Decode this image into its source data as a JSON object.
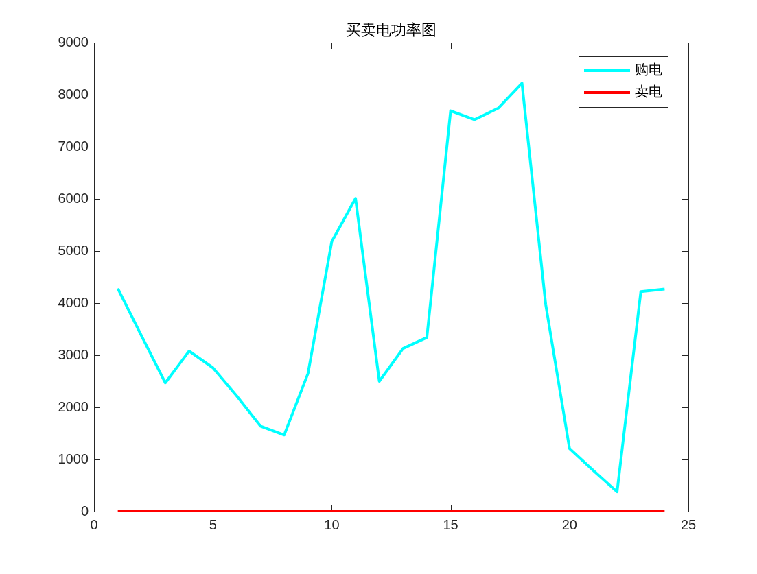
{
  "chart_data": {
    "type": "line",
    "title": "买卖电功率图",
    "x": [
      1,
      2,
      3,
      4,
      5,
      6,
      7,
      8,
      9,
      10,
      11,
      12,
      13,
      14,
      15,
      16,
      17,
      18,
      19,
      20,
      21,
      22,
      23,
      24
    ],
    "series": [
      {
        "name": "购电",
        "color": "#00ffff",
        "values": [
          4280,
          3370,
          2470,
          3080,
          2760,
          2220,
          1640,
          1470,
          2650,
          5180,
          6010,
          2500,
          3130,
          3340,
          7690,
          7520,
          7740,
          8220,
          3970,
          1210,
          790,
          380,
          4220,
          4270
        ]
      },
      {
        "name": "卖电",
        "color": "#ff0000",
        "values": [
          0,
          0,
          0,
          0,
          0,
          0,
          0,
          0,
          0,
          0,
          0,
          0,
          0,
          0,
          0,
          0,
          0,
          0,
          0,
          0,
          0,
          0,
          0,
          0
        ]
      }
    ],
    "xlim": [
      0,
      25
    ],
    "xticks": [
      0,
      5,
      10,
      15,
      20,
      25
    ],
    "ylim": [
      0,
      9000
    ],
    "yticks": [
      0,
      1000,
      2000,
      3000,
      4000,
      5000,
      6000,
      7000,
      8000,
      9000
    ],
    "grid": false,
    "legend": "top right",
    "marker": "none",
    "line_style": "solid"
  }
}
